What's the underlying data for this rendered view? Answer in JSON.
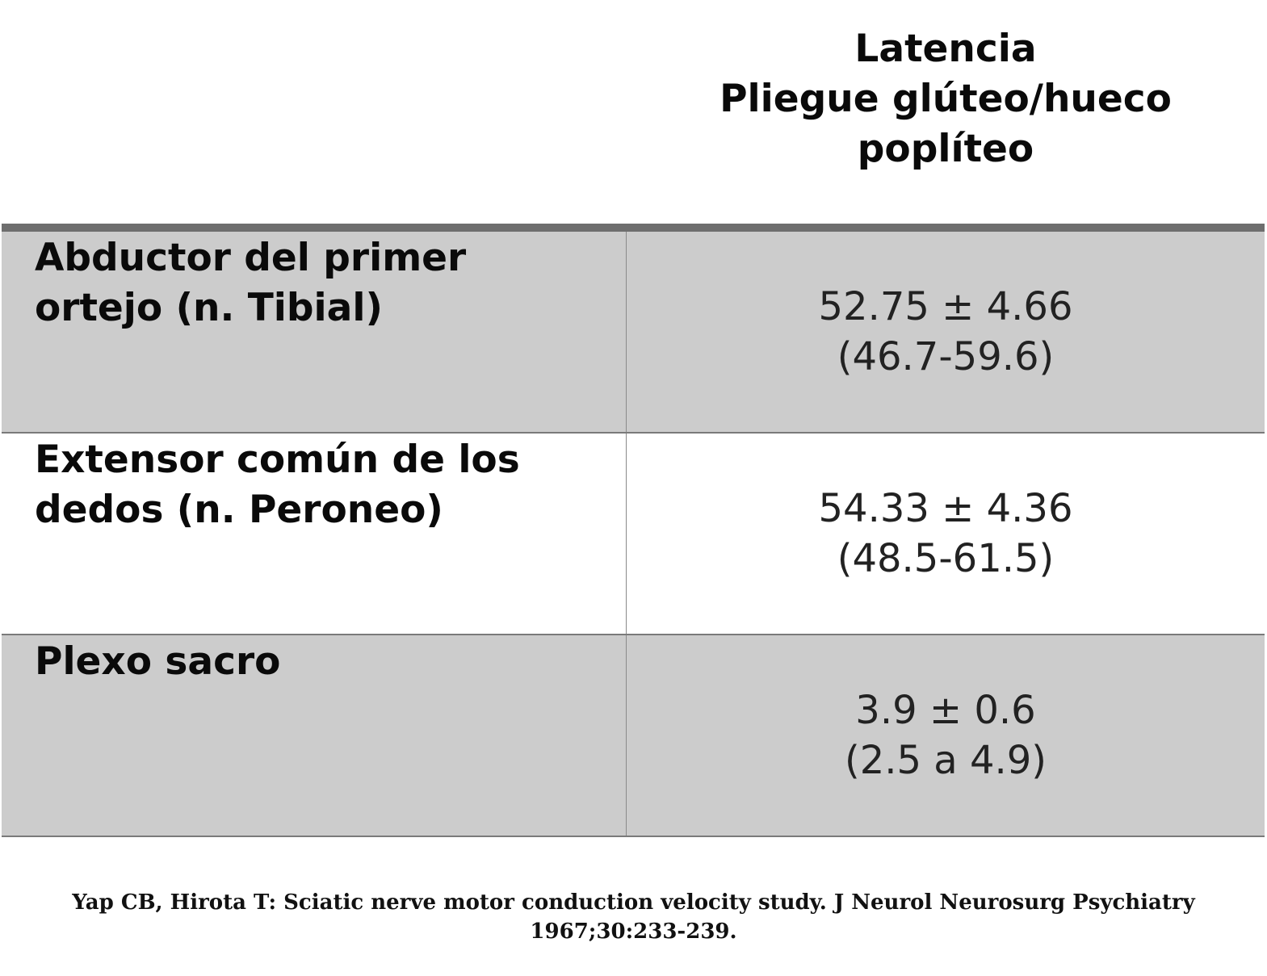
{
  "header": {
    "lines": [
      "Latencia",
      "Pliegue glúteo/hueco",
      "poplíteo"
    ]
  },
  "rows": [
    {
      "label_lines": [
        "Abductor del primer",
        "ortejo (n. Tibial)"
      ],
      "value_lines": [
        "52.75 ± 4.66",
        "(46.7-59.6)"
      ]
    },
    {
      "label_lines": [
        "Extensor común de los",
        "dedos (n. Peroneo)"
      ],
      "value_lines": [
        "54.33 ± 4.36",
        "(48.5-61.5)"
      ]
    },
    {
      "label_lines": [
        "Plexo sacro"
      ],
      "value_lines": [
        "3.9 ± 0.6",
        "(2.5 a 4.9)"
      ]
    }
  ],
  "citation": {
    "lines": [
      "Yap CB, Hirota T: Sciatic nerve motor conduction velocity study. J Neurol Neurosurg Psychiatry",
      "1967;30:233-239."
    ]
  },
  "colors": {
    "shaded_row": "#cccccc",
    "rule": "#6e6e6e"
  }
}
